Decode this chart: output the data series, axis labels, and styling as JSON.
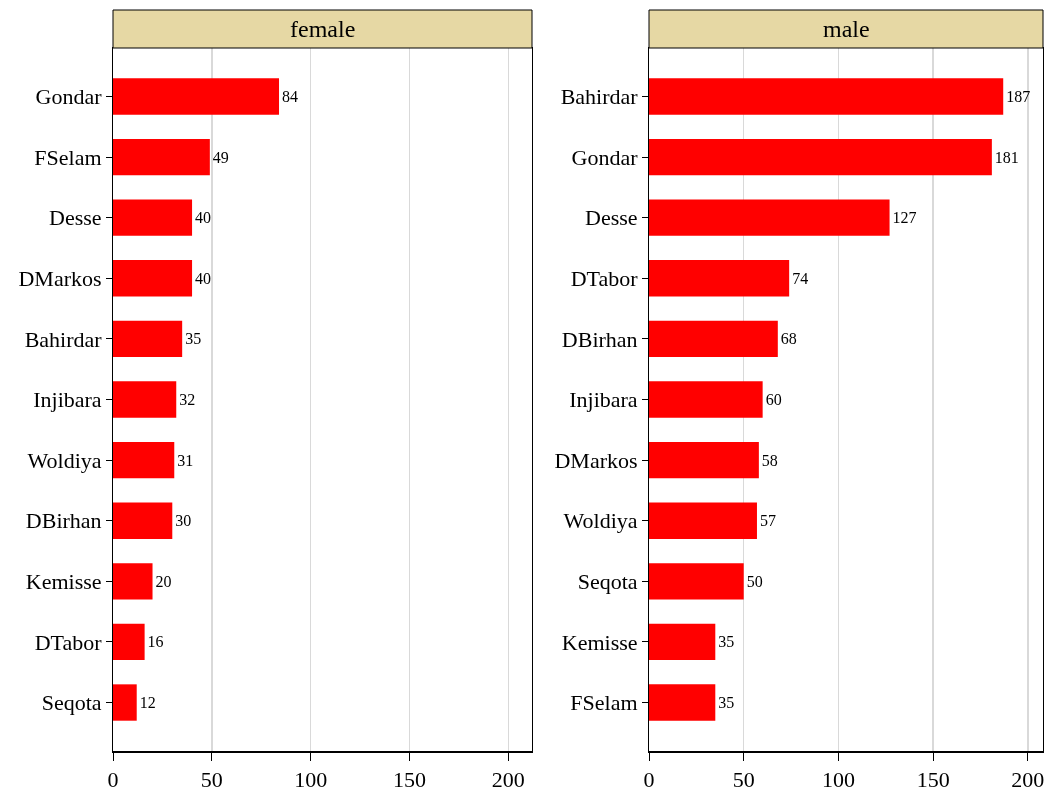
{
  "chart_data": [
    {
      "type": "bar",
      "title": "female",
      "orientation": "horizontal",
      "categories": [
        "Gondar",
        "FSelam",
        "Desse",
        "DMarkos",
        "Bahirdar",
        "Injibara",
        "Woldiya",
        "DBirhan",
        "Kemisse",
        "DTabor",
        "Seqota"
      ],
      "values": [
        84,
        49,
        40,
        40,
        35,
        32,
        31,
        30,
        20,
        16,
        12
      ],
      "color": "#ff0000",
      "xlim": [
        0,
        212
      ],
      "xticks": [
        0,
        50,
        100,
        150,
        200
      ],
      "grid": "x",
      "data_labels": true
    },
    {
      "type": "bar",
      "title": "male",
      "orientation": "horizontal",
      "categories": [
        "Bahirdar",
        "Gondar",
        "Desse",
        "DTabor",
        "DBirhan",
        "Injibara",
        "DMarkos",
        "Woldiya",
        "Seqota",
        "Kemisse",
        "FSelam"
      ],
      "values": [
        187,
        181,
        127,
        74,
        68,
        60,
        58,
        57,
        50,
        35,
        35
      ],
      "color": "#ff0000",
      "xlim": [
        0,
        208
      ],
      "xticks": [
        0,
        50,
        100,
        150,
        200
      ],
      "grid": "x",
      "data_labels": true
    }
  ]
}
